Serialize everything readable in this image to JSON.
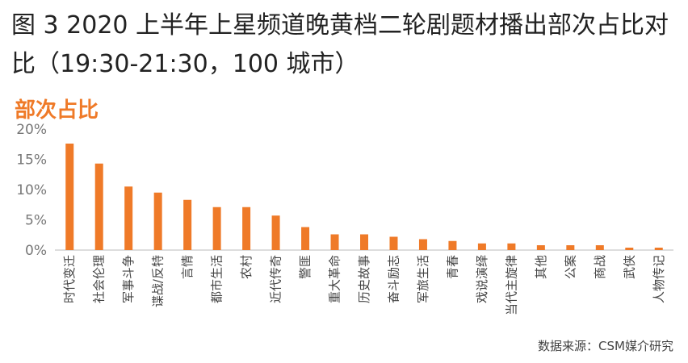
{
  "title": "图 3 2020 上半年上星频道晚黄档二轮剧题材播出部次占比对比（19:30-21:30，100 城市）",
  "subtitle": "部次占比",
  "source": "数据来源：CSM媒介研究",
  "colors": {
    "bar": "#ef7a28",
    "axis": "#bbbbbb",
    "subtitle": "#ef7a28"
  },
  "chart_data": {
    "type": "bar",
    "title": "图 3 2020 上半年上星频道晚黄档二轮剧题材播出部次占比对比（19:30-21:30，100 城市）",
    "subtitle": "部次占比",
    "categories": [
      "时代变迁",
      "社会伦理",
      "军事斗争",
      "谍战/反特",
      "言情",
      "都市生活",
      "农村",
      "近代传奇",
      "警匪",
      "重大革命",
      "历史故事",
      "奋斗励志",
      "军旅生活",
      "青春",
      "戏说演绎",
      "当代主旋律",
      "其他",
      "公案",
      "商战",
      "武侠",
      "人物传记"
    ],
    "values": [
      17.6,
      14.3,
      10.5,
      9.5,
      8.3,
      7.1,
      7.1,
      5.7,
      3.8,
      2.6,
      2.6,
      2.2,
      1.8,
      1.5,
      1.1,
      1.1,
      0.8,
      0.8,
      0.8,
      0.4,
      0.4
    ],
    "yticks": [
      "0%",
      "5%",
      "10%",
      "15%",
      "20%"
    ],
    "ylim": [
      0,
      20
    ],
    "xlabel": "",
    "ylabel": "",
    "grid": false,
    "legend": "none"
  }
}
